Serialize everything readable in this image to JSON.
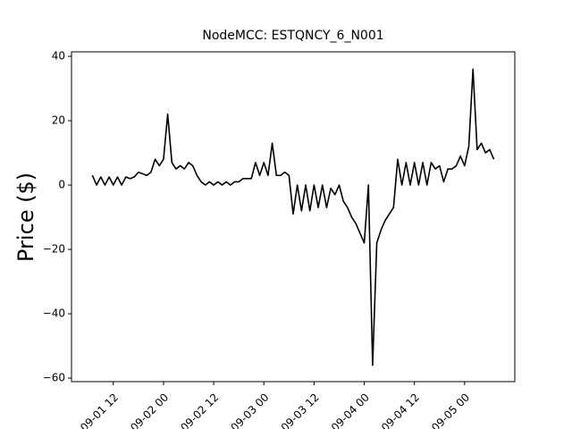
{
  "chart_data": {
    "type": "line",
    "title": "NodeMCC: ESTQNCY_6_N001",
    "y_label": "Price ($)",
    "color": "#000000",
    "x": [
      "09-01 07",
      "09-01 08",
      "09-01 09",
      "09-01 10",
      "09-01 11",
      "09-01 12",
      "09-01 13",
      "09-01 14",
      "09-01 15",
      "09-01 16",
      "09-01 17",
      "09-01 18",
      "09-01 19",
      "09-01 20",
      "09-01 21",
      "09-01 22",
      "09-01 23",
      "09-02 00",
      "09-02 01",
      "09-02 02",
      "09-02 03",
      "09-02 04",
      "09-02 05",
      "09-02 06",
      "09-02 07",
      "09-02 08",
      "09-02 09",
      "09-02 10",
      "09-02 11",
      "09-02 12",
      "09-02 13",
      "09-02 14",
      "09-02 15",
      "09-02 16",
      "09-02 17",
      "09-02 18",
      "09-02 19",
      "09-02 20",
      "09-02 21",
      "09-02 22",
      "09-02 23",
      "09-03 00",
      "09-03 01",
      "09-03 02",
      "09-03 03",
      "09-03 04",
      "09-03 05",
      "09-03 06",
      "09-03 07",
      "09-03 08",
      "09-03 09",
      "09-03 10",
      "09-03 11",
      "09-03 12",
      "09-03 13",
      "09-03 14",
      "09-03 15",
      "09-03 16",
      "09-03 17",
      "09-03 18",
      "09-03 19",
      "09-03 20",
      "09-03 21",
      "09-03 22",
      "09-03 23",
      "09-04 00",
      "09-04 01",
      "09-04 02",
      "09-04 03",
      "09-04 04",
      "09-04 05",
      "09-04 06",
      "09-04 07",
      "09-04 08",
      "09-04 09",
      "09-04 10",
      "09-04 11",
      "09-04 12",
      "09-04 13",
      "09-04 14",
      "09-04 15",
      "09-04 16",
      "09-04 17",
      "09-04 18",
      "09-04 19",
      "09-04 20",
      "09-04 21",
      "09-04 22",
      "09-04 23",
      "09-05 00",
      "09-05 01",
      "09-05 02",
      "09-05 03",
      "09-05 04",
      "09-05 05",
      "09-05 06",
      "09-05 07"
    ],
    "values": [
      3,
      0,
      2.5,
      0,
      2.5,
      0,
      2.5,
      0,
      2.5,
      2,
      2.5,
      4,
      3.5,
      3,
      4,
      8,
      6,
      8,
      22,
      7,
      5,
      6,
      5,
      7,
      6,
      3,
      1,
      0,
      1,
      0,
      1,
      0,
      1,
      0,
      1,
      1,
      2,
      2,
      2,
      7,
      3,
      7,
      3,
      13,
      3,
      3,
      4,
      3,
      -9,
      0,
      -8,
      0,
      -8,
      0,
      -7,
      0,
      -7,
      -1,
      -3,
      0,
      -5,
      -7,
      -10,
      -12,
      -15,
      -18,
      0,
      -56,
      -18,
      -14,
      -11,
      -9,
      -7,
      8,
      0,
      7,
      0,
      7,
      0,
      7,
      0,
      7,
      5,
      6,
      1,
      5,
      5,
      6,
      9,
      6,
      12,
      36,
      11,
      13,
      10,
      11,
      8
    ],
    "xlim": [
      "09-01 02",
      "09-05 12"
    ],
    "xticks": [
      "09-01 12",
      "09-02 00",
      "09-02 12",
      "09-03 00",
      "09-03 12",
      "09-04 00",
      "09-04 12",
      "09-05 00"
    ],
    "ylim": [
      -61.1,
      41.4
    ],
    "yticks": [
      {
        "value": -60,
        "label": "−60"
      },
      {
        "value": -40,
        "label": "−40"
      },
      {
        "value": -20,
        "label": "−20"
      },
      0,
      20,
      40
    ]
  }
}
